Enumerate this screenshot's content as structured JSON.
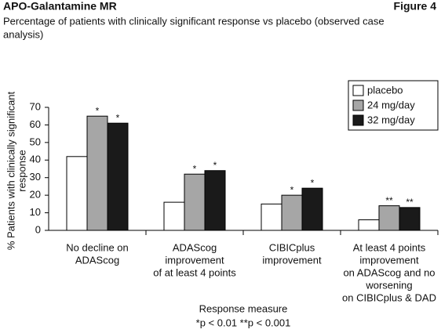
{
  "chart_data": {
    "type": "bar",
    "header": "APO-Galantamine MR",
    "figure_label": "Figure 4",
    "title": [
      "Percentage of patients with clinically significant response vs placebo (observed case",
      "analysis)"
    ],
    "ylabel": [
      "% Patients with clinically significant",
      "response"
    ],
    "xlabel": "Response measure",
    "footnote": "*p < 0.01   **p < 0.001",
    "categories": [
      [
        "No decline on",
        "ADAScog"
      ],
      [
        "ADAScog",
        "improvement",
        "of at least 4 points"
      ],
      [
        "CIBICplus",
        "improvement"
      ],
      [
        "At least 4 points",
        "improvement",
        "on ADAScog and no",
        "worsening",
        "on CIBICplus & DAD"
      ]
    ],
    "series": [
      {
        "name": "placebo",
        "color": "#ffffff",
        "values": [
          42,
          16,
          15,
          6
        ]
      },
      {
        "name": "24 mg/day",
        "color": "#a6a6a6",
        "values": [
          65,
          32,
          20,
          14
        ],
        "annotations": [
          "*",
          "*",
          "*",
          "**"
        ]
      },
      {
        "name": "32 mg/day",
        "color": "#1a1a1a",
        "values": [
          61,
          34,
          24,
          13
        ],
        "annotations": [
          "*",
          "*",
          "*",
          "**"
        ]
      }
    ],
    "ylim": [
      0,
      70
    ],
    "yticks": [
      0,
      10,
      20,
      30,
      40,
      50,
      60,
      70
    ],
    "legend": "top-right"
  }
}
